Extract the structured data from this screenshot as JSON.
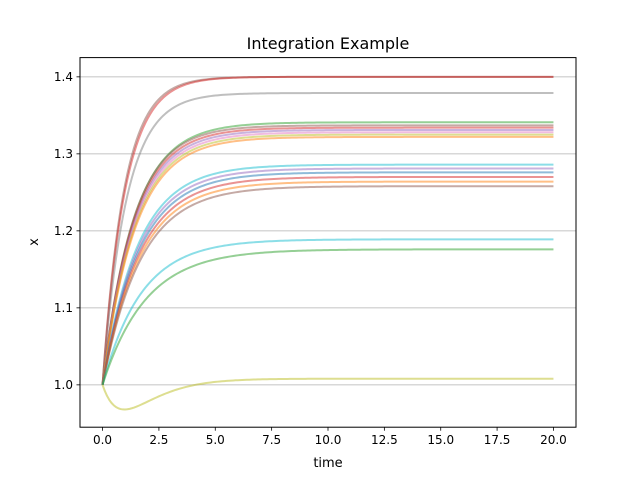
{
  "chart_data": {
    "type": "line",
    "title": "Integration Example",
    "xlabel": "time",
    "ylabel": "x",
    "xlim": [
      -1.0,
      21.0
    ],
    "ylim": [
      0.945,
      1.425
    ],
    "x_ticks": [
      "0.0",
      "2.5",
      "5.0",
      "7.5",
      "10.0",
      "12.5",
      "15.0",
      "17.5",
      "20.0"
    ],
    "y_ticks": [
      "1.0",
      "1.1",
      "1.2",
      "1.3",
      "1.4"
    ],
    "grid": "y-major",
    "legend": "none",
    "x_range": [
      0,
      20
    ],
    "series": [
      {
        "values_final": 1.4,
        "rate": 1.05,
        "color": "#8c564b"
      },
      {
        "values_final": 1.4,
        "rate": 1.0,
        "color": "#d62728"
      },
      {
        "values_final": 1.379,
        "rate": 0.95,
        "color": "#7f7f7f"
      },
      {
        "values_final": 1.341,
        "rate": 0.72,
        "color": "#2ca02c"
      },
      {
        "values_final": 1.337,
        "rate": 0.74,
        "color": "#8c564b"
      },
      {
        "values_final": 1.334,
        "rate": 0.73,
        "color": "#d62728"
      },
      {
        "values_final": 1.331,
        "rate": 0.72,
        "color": "#9467bd"
      },
      {
        "values_final": 1.328,
        "rate": 0.71,
        "color": "#e377c2"
      },
      {
        "values_final": 1.325,
        "rate": 0.7,
        "color": "#bcbd22"
      },
      {
        "values_final": 1.322,
        "rate": 0.69,
        "color": "#ff7f0e"
      },
      {
        "values_final": 1.286,
        "rate": 0.64,
        "color": "#17becf"
      },
      {
        "values_final": 1.281,
        "rate": 0.63,
        "color": "#9467bd"
      },
      {
        "values_final": 1.276,
        "rate": 0.62,
        "color": "#1f77b4"
      },
      {
        "values_final": 1.27,
        "rate": 0.61,
        "color": "#d62728"
      },
      {
        "values_final": 1.264,
        "rate": 0.6,
        "color": "#ff7f0e"
      },
      {
        "values_final": 1.258,
        "rate": 0.59,
        "color": "#8c564b"
      },
      {
        "values_final": 1.189,
        "rate": 0.58,
        "color": "#17becf"
      },
      {
        "values_final": 1.176,
        "rate": 0.52,
        "color": "#2ca02c"
      },
      {
        "values_final": 1.008,
        "rate": 0.5,
        "dip": true,
        "color": "#bcbd22"
      }
    ]
  }
}
